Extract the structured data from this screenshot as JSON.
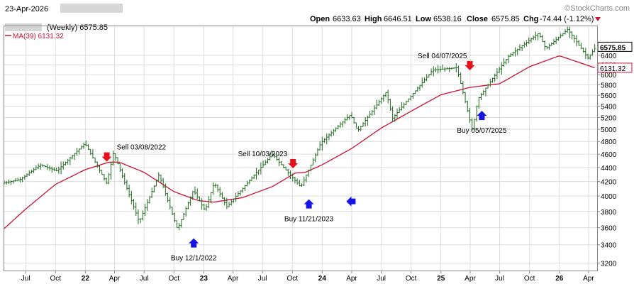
{
  "header": {
    "date": "23-Apr-2026",
    "watermark": "©StockCharts.com",
    "symbol_line": "(Weekly) 6575.85",
    "ma_line": "MA(39) 6131.32",
    "open_label": "Open",
    "open_value": "6633.63",
    "high_label": "High",
    "high_value": "6646.51",
    "low_label": "Low",
    "low_value": "6538.16",
    "close_label": "Close",
    "close_value": "6575.85",
    "chg_label": "Chg",
    "chg_value": "-74.44 (-1.12%)"
  },
  "colors": {
    "bars": "#1e6b1e",
    "ma": "#cc1133",
    "sell_arrow": "#e8101a",
    "buy_arrow": "#1414e6",
    "grid": "#dcdcdc",
    "frame": "#888888",
    "price_tag_bg": "#ffffff"
  },
  "chart_data": {
    "type": "line",
    "price_scale": "log",
    "ylim": [
      3120,
      7050
    ],
    "y_ticks": [
      3200,
      3400,
      3600,
      3800,
      4000,
      4200,
      4400,
      4600,
      4800,
      5000,
      5200,
      5400,
      5600,
      5800,
      6000,
      6200,
      6400
    ],
    "x_ticks": [
      "Jul",
      "Oct",
      "22",
      "Apr",
      "Jul",
      "Oct",
      "23",
      "Apr",
      "Jul",
      "Oct",
      "24",
      "Apr",
      "Jul",
      "Oct",
      "25",
      "Apr",
      "Jul",
      "Oct",
      "26",
      "Apr"
    ],
    "x_tick_dates": [
      "2021-07-01",
      "2021-10-01",
      "2022-01-01",
      "2022-04-01",
      "2022-07-01",
      "2022-10-01",
      "2023-01-01",
      "2023-04-01",
      "2023-07-01",
      "2023-10-01",
      "2024-01-01",
      "2024-04-01",
      "2024-07-01",
      "2024-10-01",
      "2025-01-01",
      "2025-04-01",
      "2025-07-01",
      "2025-10-01",
      "2026-01-01",
      "2026-04-01"
    ],
    "x_range": [
      "2021-04-26",
      "2026-04-23"
    ],
    "grid": true,
    "series": [
      {
        "name": "(Weekly) 6575.85",
        "style": "ohlc",
        "anchors": [
          [
            "2021-04-26",
            4180
          ],
          [
            "2021-06-15",
            4230
          ],
          [
            "2021-08-15",
            4440
          ],
          [
            "2021-10-05",
            4350
          ],
          [
            "2021-12-31",
            4770
          ],
          [
            "2022-03-08",
            4170
          ],
          [
            "2022-03-29",
            4630
          ],
          [
            "2022-06-16",
            3670
          ],
          [
            "2022-08-16",
            4300
          ],
          [
            "2022-10-12",
            3580
          ],
          [
            "2022-11-30",
            4080
          ],
          [
            "2023-01-05",
            3810
          ],
          [
            "2023-02-02",
            4180
          ],
          [
            "2023-03-13",
            3860
          ],
          [
            "2023-07-31",
            4600
          ],
          [
            "2023-10-27",
            4120
          ],
          [
            "2023-12-28",
            4780
          ],
          [
            "2024-03-28",
            5250
          ],
          [
            "2024-04-19",
            4970
          ],
          [
            "2024-07-16",
            5660
          ],
          [
            "2024-08-05",
            5190
          ],
          [
            "2024-12-06",
            6090
          ],
          [
            "2025-02-19",
            6140
          ],
          [
            "2025-04-08",
            4980
          ],
          [
            "2025-04-25",
            5530
          ],
          [
            "2025-07-28",
            6380
          ],
          [
            "2025-10-29",
            6890
          ],
          [
            "2025-11-20",
            6540
          ],
          [
            "2026-01-27",
            6980
          ],
          [
            "2026-03-30",
            6340
          ],
          [
            "2026-04-23",
            6575.85
          ]
        ]
      },
      {
        "name": "MA(39) 6131.32",
        "style": "line",
        "anchors": [
          [
            "2021-04-26",
            3590
          ],
          [
            "2021-07-01",
            3830
          ],
          [
            "2021-10-01",
            4160
          ],
          [
            "2022-01-01",
            4370
          ],
          [
            "2022-03-15",
            4480
          ],
          [
            "2022-04-15",
            4480
          ],
          [
            "2022-07-01",
            4330
          ],
          [
            "2022-10-01",
            4060
          ],
          [
            "2022-12-15",
            3940
          ],
          [
            "2023-02-01",
            3920
          ],
          [
            "2023-05-01",
            3980
          ],
          [
            "2023-08-01",
            4130
          ],
          [
            "2023-10-10",
            4320
          ],
          [
            "2023-11-10",
            4330
          ],
          [
            "2024-01-01",
            4440
          ],
          [
            "2024-04-01",
            4690
          ],
          [
            "2024-07-01",
            5020
          ],
          [
            "2024-10-01",
            5310
          ],
          [
            "2025-01-01",
            5610
          ],
          [
            "2025-04-01",
            5750
          ],
          [
            "2025-07-01",
            5820
          ],
          [
            "2025-10-01",
            6160
          ],
          [
            "2026-01-01",
            6390
          ],
          [
            "2026-04-23",
            6131.32
          ]
        ]
      }
    ],
    "last_price_tag": "6575.85",
    "ma_price_tag": "6131.32",
    "annotations": [
      {
        "text": "Sell 03/08/2022",
        "kind": "sell",
        "date": "2022-03-08",
        "price": 4520,
        "arrow_side": "above"
      },
      {
        "text": "Buy 12/1/2022",
        "kind": "buy",
        "date": "2022-12-01",
        "price": 3450,
        "arrow_side": "below"
      },
      {
        "text": "Sell 10/03/2023",
        "kind": "sell",
        "date": "2023-10-03",
        "price": 4420,
        "arrow_side": "above"
      },
      {
        "text": "Buy 11/21/2023",
        "kind": "buy",
        "date": "2023-11-21",
        "price": 3930,
        "arrow_side": "below"
      },
      {
        "text": "",
        "kind": "buy-left",
        "date": "2024-03-22",
        "price": 3930,
        "arrow_side": "left"
      },
      {
        "text": "Sell 04/07/2025",
        "kind": "sell",
        "date": "2025-03-31",
        "price": 6130,
        "arrow_side": "above"
      },
      {
        "text": "Buy 05/07/2025",
        "kind": "buy",
        "date": "2025-05-07",
        "price": 5280,
        "arrow_side": "below"
      }
    ]
  }
}
